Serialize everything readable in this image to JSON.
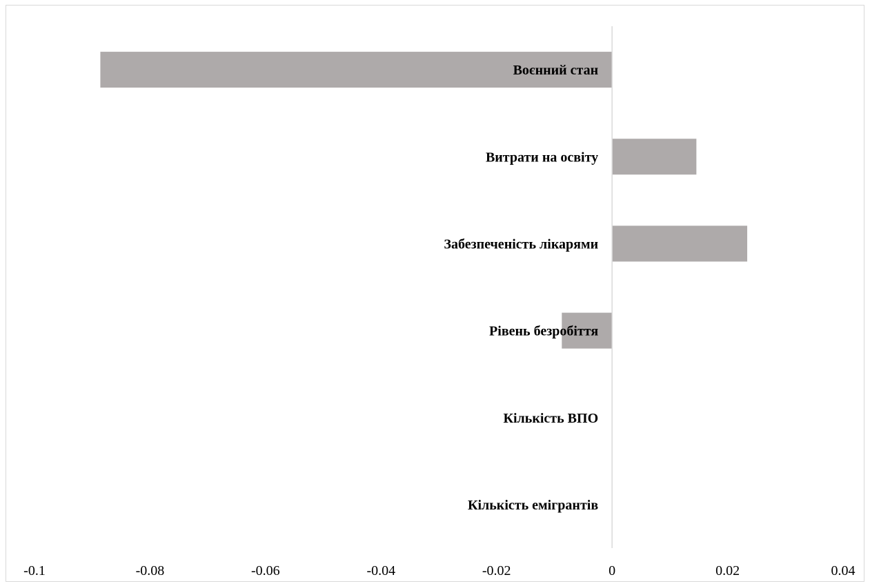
{
  "chart_data": {
    "type": "bar",
    "orientation": "horizontal",
    "categories": [
      "Воєнний стан",
      "Витрати на освіту",
      "Забезпеченість лікарями",
      "Рівень безробіття",
      "Кількість ВПО",
      "Кількість емігрантів"
    ],
    "values": [
      -0.0886,
      0.0146,
      0.0234,
      -0.0087,
      0,
      0
    ],
    "xlim": [
      -0.1,
      0.04
    ],
    "xticks": [
      -0.1,
      -0.08,
      -0.06,
      -0.04,
      -0.02,
      0,
      0.02,
      0.04
    ],
    "xtick_labels": [
      "-0.1",
      "-0.08",
      "-0.06",
      "-0.04",
      "-0.02",
      "0",
      "0.02",
      "0.04"
    ],
    "grid": false,
    "legend": "none",
    "title": "",
    "xlabel": "",
    "ylabel": ""
  },
  "colors": {
    "bar": "#aeaaaa",
    "axis": "#d9d9d9",
    "border": "#d9d9d9",
    "text": "#000000"
  }
}
